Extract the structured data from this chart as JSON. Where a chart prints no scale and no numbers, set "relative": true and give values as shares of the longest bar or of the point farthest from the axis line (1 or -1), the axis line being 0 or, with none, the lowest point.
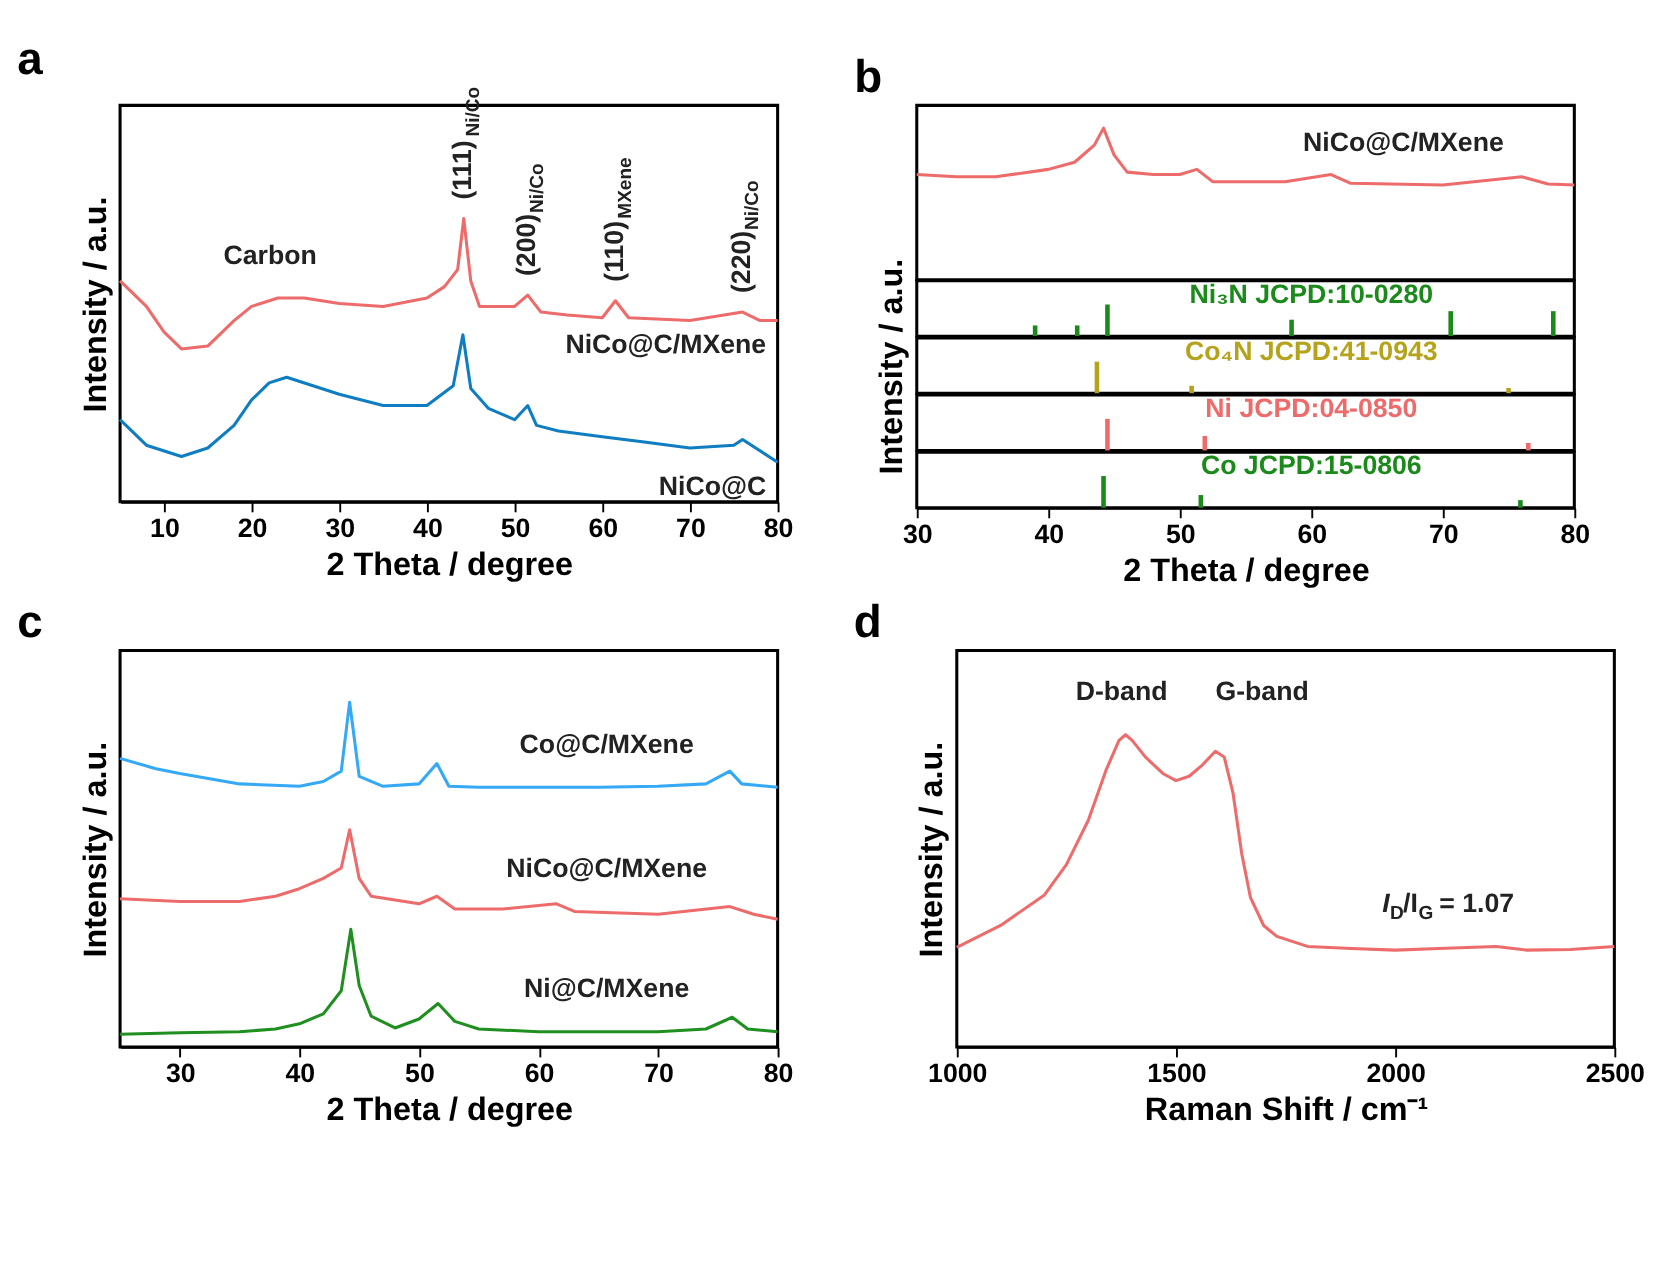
{
  "chart_data": [
    {
      "type": "line",
      "title": "a",
      "xlabel": "2 Theta / degree",
      "ylabel": "Intensity / a.u.",
      "relative": true,
      "tick_labels": "x",
      "xlim": [
        5,
        80
      ],
      "xticks": [
        10,
        20,
        30,
        40,
        50,
        60,
        70,
        80
      ],
      "series": [
        {
          "name": "NiCo@C/MXene",
          "color": "#ee6b6b",
          "x": [
            5,
            8,
            10,
            12,
            15,
            18,
            20,
            23,
            26,
            30,
            35,
            40,
            42,
            43.5,
            44.2,
            45,
            46,
            48,
            50,
            51.5,
            53,
            56,
            60,
            61.5,
            63,
            70,
            76,
            78,
            80
          ],
          "values": [
            0.78,
            0.69,
            0.6,
            0.54,
            0.55,
            0.64,
            0.69,
            0.72,
            0.72,
            0.7,
            0.69,
            0.72,
            0.76,
            0.82,
            1.0,
            0.78,
            0.69,
            0.69,
            0.69,
            0.73,
            0.67,
            0.66,
            0.65,
            0.71,
            0.65,
            0.64,
            0.67,
            0.64,
            0.64
          ]
        },
        {
          "name": "NiCo@C",
          "color": "#0f7dc2",
          "x": [
            5,
            8,
            12,
            15,
            18,
            20,
            22,
            24,
            27,
            30,
            35,
            40,
            43,
            44.1,
            45,
            47,
            50,
            51.5,
            52.5,
            55,
            60,
            65,
            70,
            75,
            76,
            80
          ],
          "values": [
            0.29,
            0.2,
            0.16,
            0.19,
            0.27,
            0.36,
            0.42,
            0.44,
            0.41,
            0.38,
            0.34,
            0.34,
            0.41,
            0.59,
            0.4,
            0.33,
            0.29,
            0.34,
            0.27,
            0.25,
            0.23,
            0.21,
            0.19,
            0.2,
            0.22,
            0.14
          ]
        }
      ],
      "annotations": [
        {
          "text": "Carbon",
          "x": 23,
          "y": 0.72
        },
        {
          "text": "(111)$_{Ni/Co}$",
          "x": 44.2,
          "y": 1.0
        },
        {
          "text": "(200)$_{Ni/Co}$",
          "x": 51.5,
          "y": 0.73
        },
        {
          "text": "(110)$_{MXene}$",
          "x": 61.5,
          "y": 0.71
        },
        {
          "text": "(220)$_{Ni/Co}$",
          "x": 76,
          "y": 0.67
        }
      ]
    },
    {
      "type": "line",
      "title": "b",
      "relative": true,
      "tick_labels": false,
      "xlim": [
        30,
        80
      ],
      "series": [
        {
          "name": "NiCo@C/MXene",
          "color": "#ee6b6b",
          "x": [
            30,
            33,
            36,
            40,
            42,
            43.5,
            44.2,
            45,
            46,
            48,
            50,
            51.3,
            52.5,
            55,
            58,
            61.5,
            63,
            70,
            76,
            78,
            80
          ],
          "values": [
            0.694,
            0.679,
            0.679,
            0.728,
            0.775,
            0.888,
            1.0,
            0.824,
            0.71,
            0.694,
            0.694,
            0.728,
            0.647,
            0.647,
            0.647,
            0.694,
            0.636,
            0.625,
            0.679,
            0.632,
            0.625
          ]
        }
      ]
    },
    {
      "type": "bar",
      "relative": true,
      "tick_labels": false,
      "xlim": [
        30,
        80
      ],
      "series": [
        {
          "name": "Ni₃N JCPD:10-0280",
          "color": "#1a8a1a",
          "x": [
            39,
            42.2,
            44.5,
            58.5,
            70.6,
            78.4
          ],
          "values": [
            0.34,
            0.34,
            1.0,
            0.52,
            0.79,
            0.79
          ]
        }
      ]
    },
    {
      "type": "bar",
      "ylabel": "Intensity / a.u.",
      "relative": true,
      "tick_labels": false,
      "xlim": [
        30,
        80
      ],
      "series": [
        {
          "name": "Co₄N JCPD:41-0943",
          "color": "#b5a31c",
          "x": [
            43.7,
            50.9,
            75
          ],
          "values": [
            1.0,
            0.24,
            0.17
          ]
        }
      ]
    },
    {
      "type": "bar",
      "relative": true,
      "tick_labels": false,
      "xlim": [
        30,
        80
      ],
      "series": [
        {
          "name": "Ni JCPD:04-0850",
          "color": "#ee6b6b",
          "x": [
            44.5,
            51.9,
            76.5
          ],
          "values": [
            1.0,
            0.46,
            0.24
          ]
        }
      ]
    },
    {
      "type": "bar",
      "xlabel": "2 Theta / degree",
      "relative": true,
      "tick_labels": "x",
      "xlim": [
        30,
        80
      ],
      "xticks": [
        30,
        40,
        50,
        60,
        70,
        80
      ],
      "series": [
        {
          "name": "Co JCPD:15-0806",
          "color": "#1a8a1a",
          "x": [
            44.2,
            51.6,
            75.9
          ],
          "values": [
            1.0,
            0.4,
            0.24
          ]
        }
      ]
    },
    {
      "type": "line",
      "title": "c",
      "xlabel": "2 Theta / degree",
      "ylabel": "Intensity / a.u.",
      "relative": true,
      "tick_labels": "x",
      "xlim": [
        25,
        80
      ],
      "xticks": [
        30,
        40,
        50,
        60,
        70,
        80
      ],
      "series": [
        {
          "name": "Co@C/MXene",
          "color": "#35a9f5",
          "x": [
            25,
            28,
            30,
            35,
            40,
            42,
            43.5,
            44.2,
            45,
            47,
            50,
            51.5,
            52.5,
            55,
            60,
            65,
            70,
            74,
            76,
            77,
            80
          ],
          "values": [
            0.837,
            0.807,
            0.793,
            0.763,
            0.756,
            0.77,
            0.8,
            1.0,
            0.785,
            0.756,
            0.763,
            0.822,
            0.756,
            0.753,
            0.753,
            0.753,
            0.756,
            0.763,
            0.8,
            0.763,
            0.753
          ]
        },
        {
          "name": "NiCo@C/MXene",
          "color": "#ee6b6b",
          "x": [
            25,
            30,
            35,
            38,
            40,
            42,
            43.5,
            44.2,
            45,
            46,
            50,
            51.5,
            53,
            57,
            61.5,
            63,
            70,
            76,
            78,
            80
          ],
          "values": [
            0.43,
            0.422,
            0.422,
            0.437,
            0.459,
            0.489,
            0.519,
            0.63,
            0.489,
            0.437,
            0.415,
            0.437,
            0.4,
            0.4,
            0.415,
            0.393,
            0.385,
            0.407,
            0.385,
            0.37
          ]
        },
        {
          "name": "Ni@C/MXene",
          "color": "#1f8f1f",
          "x": [
            25,
            30,
            35,
            38,
            40,
            42,
            43.5,
            44.3,
            45,
            46,
            48,
            50,
            51.6,
            53,
            55,
            60,
            70,
            74,
            76.2,
            77.5,
            80
          ],
          "values": [
            0.037,
            0.041,
            0.044,
            0.052,
            0.067,
            0.096,
            0.163,
            0.341,
            0.178,
            0.089,
            0.055,
            0.081,
            0.126,
            0.074,
            0.052,
            0.044,
            0.044,
            0.052,
            0.086,
            0.052,
            0.044
          ]
        }
      ]
    },
    {
      "type": "line",
      "title": "d",
      "xlabel": "Raman Shift / cm⁻¹",
      "ylabel": "Intensity / a.u.",
      "relative": true,
      "tick_labels": "x",
      "xlim": [
        1000,
        2500
      ],
      "xticks": [
        1000,
        1500,
        2000,
        2500
      ],
      "series": [
        {
          "color": "#ee6b6b",
          "x": [
            1000,
            1100,
            1200,
            1250,
            1300,
            1340,
            1370,
            1385,
            1400,
            1430,
            1470,
            1500,
            1530,
            1560,
            1590,
            1610,
            1630,
            1650,
            1670,
            1700,
            1730,
            1800,
            1900,
            2000,
            2100,
            2230,
            2300,
            2400,
            2500
          ],
          "values": [
            0.319,
            0.389,
            0.487,
            0.584,
            0.726,
            0.885,
            0.982,
            1.0,
            0.982,
            0.929,
            0.876,
            0.853,
            0.867,
            0.903,
            0.947,
            0.929,
            0.814,
            0.619,
            0.478,
            0.389,
            0.354,
            0.322,
            0.315,
            0.31,
            0.315,
            0.322,
            0.31,
            0.312,
            0.322
          ]
        }
      ],
      "annotations": [
        {
          "text": "D-band",
          "x": 1385,
          "y": 1.0
        },
        {
          "text": "G-band",
          "x": 1590,
          "y": 0.947
        },
        "I$_{D}$/I$_{G}$ = 1.07"
      ]
    }
  ]
}
